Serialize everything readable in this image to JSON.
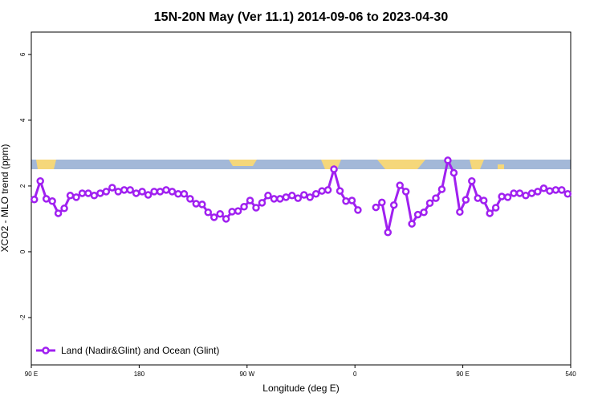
{
  "chart_data": {
    "type": "line",
    "title": "15N-20N May (Ver 11.1)   2014-09-06 to 2023-04-30",
    "x_label": "Longitude (deg E)",
    "y_label": "XCO2 - MLO trend (ppm)",
    "x": [
      92.5,
      97.5,
      102.5,
      107.5,
      112.5,
      117.5,
      122.5,
      127.5,
      132.5,
      137.5,
      142.5,
      147.5,
      152.5,
      157.5,
      162.5,
      167.5,
      172.5,
      177.5,
      182.5,
      187.5,
      192.5,
      197.5,
      202.5,
      207.5,
      212.5,
      217.5,
      222.5,
      227.5,
      232.5,
      237.5,
      242.5,
      247.5,
      252.5,
      257.5,
      262.5,
      267.5,
      272.5,
      277.5,
      282.5,
      287.5,
      292.5,
      297.5,
      302.5,
      307.5,
      312.5,
      317.5,
      322.5,
      327.5,
      332.5,
      337.5,
      342.5,
      347.5,
      352.5,
      357.5,
      362.5,
      367.5,
      372.5,
      377.5,
      382.5,
      387.5,
      392.5,
      397.5,
      402.5,
      407.5,
      412.5,
      417.5,
      422.5,
      427.5,
      432.5,
      437.5,
      442.5,
      447.5,
      452.5,
      457.5,
      462.5,
      467.5,
      472.5,
      477.5,
      482.5,
      487.5,
      492.5,
      497.5,
      502.5,
      507.5,
      512.5,
      517.5,
      522.5,
      527.5,
      532.5,
      537.5
    ],
    "series": [
      {
        "name": "Land (Nadir&Glint) and Ocean (Glint)",
        "color": "#a020f0",
        "values": [
          1.59,
          2.15,
          1.61,
          1.54,
          1.17,
          1.32,
          1.71,
          1.66,
          1.78,
          1.78,
          1.71,
          1.78,
          1.83,
          1.95,
          1.83,
          1.88,
          1.88,
          1.78,
          1.83,
          1.73,
          1.83,
          1.83,
          1.88,
          1.83,
          1.76,
          1.76,
          1.61,
          1.46,
          1.44,
          1.2,
          1.05,
          1.15,
          1.0,
          1.22,
          1.24,
          1.37,
          1.56,
          1.34,
          1.49,
          1.71,
          1.61,
          1.61,
          1.66,
          1.71,
          1.63,
          1.73,
          1.66,
          1.76,
          1.85,
          1.88,
          2.51,
          1.85,
          1.54,
          1.56,
          1.27,
          null,
          null,
          1.35,
          1.5,
          0.59,
          1.42,
          2.02,
          1.83,
          0.85,
          1.13,
          1.2,
          1.48,
          1.63,
          1.9,
          2.78,
          2.4,
          1.21,
          1.58,
          2.15,
          1.63,
          1.56,
          1.17,
          1.34,
          1.68,
          1.66,
          1.78,
          1.78,
          1.71,
          1.78,
          1.83,
          1.93,
          1.85,
          1.88,
          1.88,
          1.76
        ]
      }
    ],
    "xlim": [
      90,
      540
    ],
    "xticks": [
      {
        "value": 90,
        "label": "90 E"
      },
      180,
      {
        "value": 270,
        "label": "90 W"
      },
      {
        "value": 360,
        "label": "0"
      },
      {
        "value": 450,
        "label": "90 E"
      },
      540
    ],
    "ylim": [
      -3.44,
      6.68
    ],
    "yticks": [
      -2,
      0,
      2,
      4,
      6
    ],
    "legend": "bottom-left"
  }
}
